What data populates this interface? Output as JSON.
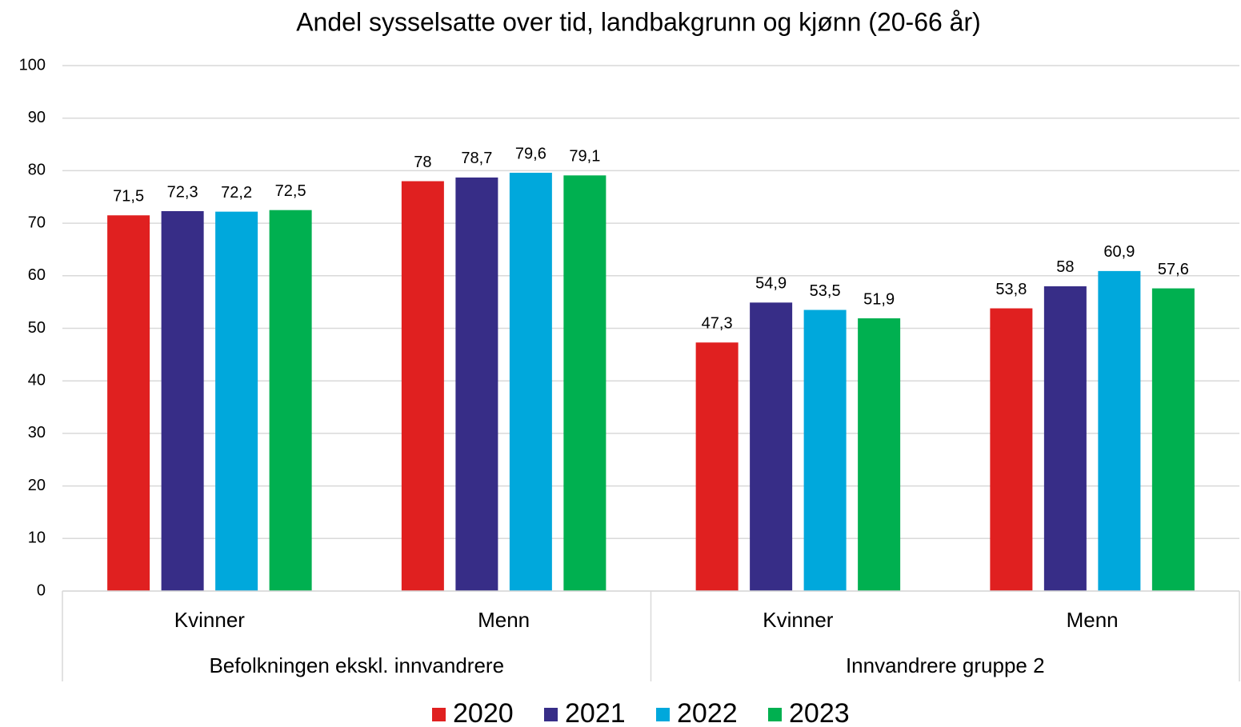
{
  "chart_data": {
    "type": "bar",
    "title": "Andel sysselsatte over tid, landbakgrunn og kjønn (20-66 år)",
    "categories": [
      "Kvinner",
      "Menn",
      "Kvinner",
      "Menn"
    ],
    "groups": [
      "Befolkningen ekskl. innvandrere",
      "Innvandrere gruppe 2"
    ],
    "series": [
      {
        "name": "2020",
        "color": "#e02020",
        "values": [
          71.5,
          78,
          47.3,
          53.8
        ],
        "value_labels": [
          "71,5",
          "78",
          "47,3",
          "53,8"
        ]
      },
      {
        "name": "2021",
        "color": "#372d87",
        "values": [
          72.3,
          78.7,
          54.9,
          58
        ],
        "value_labels": [
          "72,3",
          "78,7",
          "54,9",
          "58"
        ]
      },
      {
        "name": "2022",
        "color": "#00a8dc",
        "values": [
          72.2,
          79.6,
          53.5,
          60.9
        ],
        "value_labels": [
          "72,2",
          "79,6",
          "53,5",
          "60,9"
        ]
      },
      {
        "name": "2023",
        "color": "#00b050",
        "values": [
          72.5,
          79.1,
          51.9,
          57.6
        ],
        "value_labels": [
          "72,5",
          "79,1",
          "51,9",
          "57,6"
        ]
      }
    ],
    "ylim": [
      0,
      100
    ],
    "yticks": [
      0,
      10,
      20,
      30,
      40,
      50,
      60,
      70,
      80,
      90,
      100
    ],
    "grid": true,
    "legend": "bottom"
  }
}
